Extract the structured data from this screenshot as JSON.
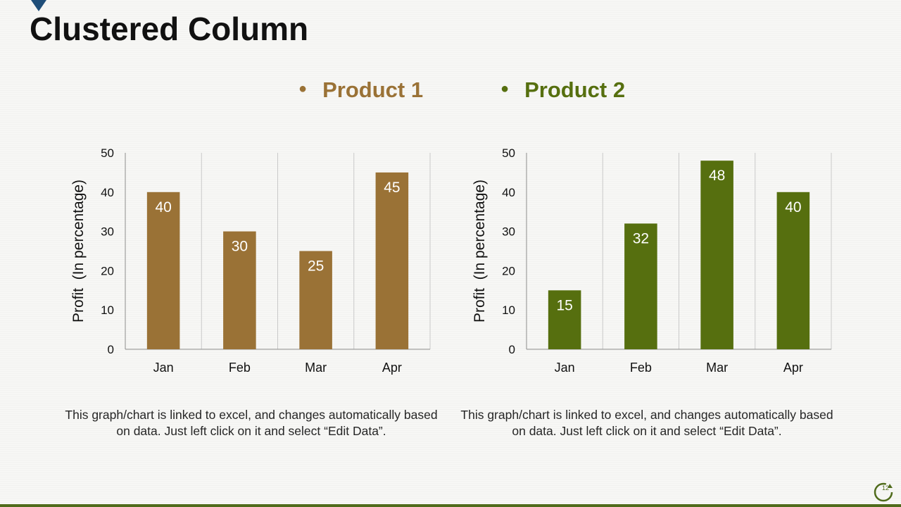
{
  "slide": {
    "title": "Clustered Column",
    "page_number": "12"
  },
  "legend": [
    {
      "label": "Product 1",
      "color": "#9a7236"
    },
    {
      "label": "Product 2",
      "color": "#566f0f"
    }
  ],
  "captions": {
    "left": "This graph/chart is linked to excel, and changes automatically based on data.  Just left click on it and select “Edit Data”.",
    "right": "This graph/chart is linked to excel, and changes automatically based on data.  Just left click on it and select “Edit Data”."
  },
  "chart_data": [
    {
      "type": "bar",
      "series_name": "Product 1",
      "categories": [
        "Jan",
        "Feb",
        "Mar",
        "Apr"
      ],
      "values": [
        40,
        30,
        25,
        45
      ],
      "ylabel": "Profit  (In percentage)",
      "ylim": [
        0,
        50
      ],
      "yticks": [
        0,
        10,
        20,
        30,
        40,
        50
      ],
      "color": "#9a7236",
      "data_labels": true,
      "grid": "vertical category separators"
    },
    {
      "type": "bar",
      "series_name": "Product 2",
      "categories": [
        "Jan",
        "Feb",
        "Mar",
        "Apr"
      ],
      "values": [
        15,
        32,
        48,
        40
      ],
      "ylabel": "Profit  (In percentage)",
      "ylim": [
        0,
        50
      ],
      "yticks": [
        0,
        10,
        20,
        30,
        40,
        50
      ],
      "color": "#566f0f",
      "data_labels": true,
      "grid": "vertical category separators"
    }
  ]
}
